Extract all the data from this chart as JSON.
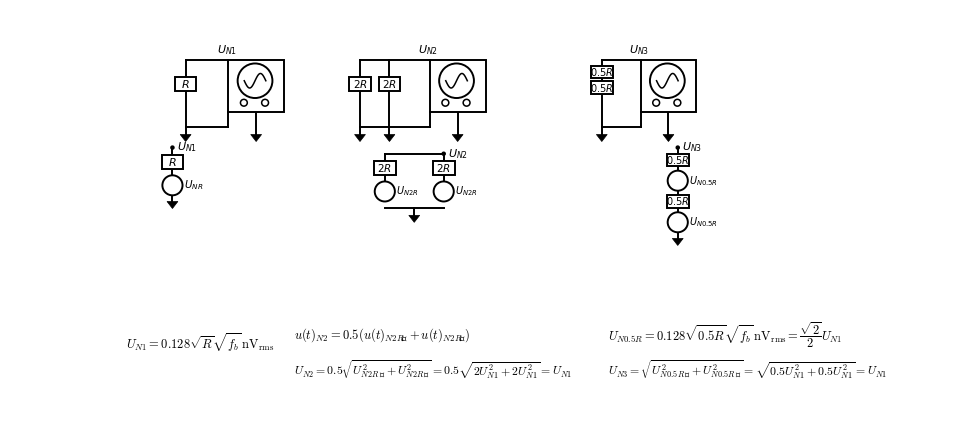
{
  "bg_color": "#ffffff",
  "fig_width": 9.58,
  "fig_height": 4.47
}
